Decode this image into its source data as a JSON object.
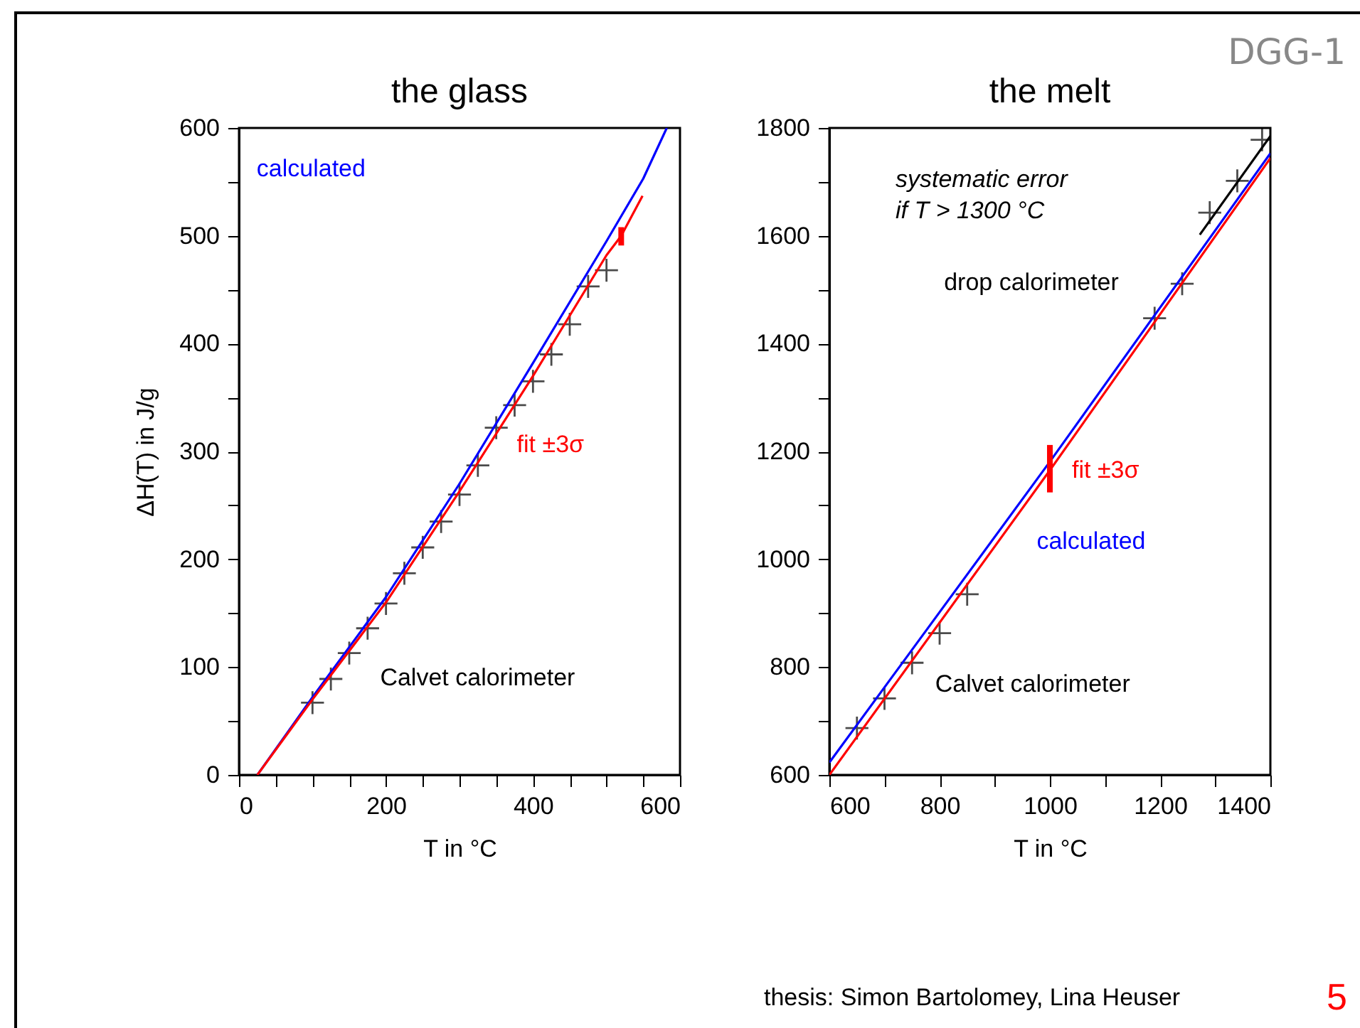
{
  "chart_data": [
    {
      "type": "line",
      "title": "the glass",
      "xlabel": "T in °C",
      "ylabel": "ΔH(T) in J/g",
      "xlim": [
        0,
        600
      ],
      "ylim": [
        0,
        600
      ],
      "xticks": [
        0,
        {
          "value": 50,
          "label": null
        },
        {
          "value": 100,
          "label": null
        },
        {
          "value": 150,
          "label": null
        },
        200,
        {
          "value": 250,
          "label": null
        },
        {
          "value": 300,
          "label": null
        },
        {
          "value": 350,
          "label": null
        },
        400,
        {
          "value": 450,
          "label": null
        },
        {
          "value": 500,
          "label": null
        },
        {
          "value": 550,
          "label": null
        },
        600
      ],
      "yticks": [
        0,
        {
          "value": 50,
          "label": null
        },
        100,
        {
          "value": 150,
          "label": null
        },
        200,
        {
          "value": 250,
          "label": null
        },
        300,
        {
          "value": 350,
          "label": null
        },
        400,
        {
          "value": 450,
          "label": null
        },
        500,
        {
          "value": 550,
          "label": null
        },
        600
      ],
      "series": [
        {
          "type": "scatter",
          "marker": "cross",
          "color": "#000000",
          "x": [
            100,
            125,
            150,
            175,
            200,
            225,
            250,
            275,
            300,
            325,
            350,
            375,
            400,
            425,
            450,
            475,
            500
          ],
          "values": [
            67,
            89,
            113,
            136,
            159,
            187,
            211,
            235,
            260,
            287,
            322,
            343,
            365,
            390,
            418,
            453,
            468
          ]
        },
        {
          "color": "#0000ff",
          "x": [
            25,
            100,
            200,
            300,
            400,
            500,
            550,
            582
          ],
          "values": [
            0,
            72,
            165,
            270,
            382,
            495,
            553,
            600
          ]
        },
        {
          "color": "#ff0000",
          "x": [
            25,
            100,
            200,
            300,
            400,
            500,
            520,
            549
          ],
          "values": [
            0,
            70,
            160,
            263,
            370,
            482,
            500,
            537
          ],
          "errors": [
            null,
            null,
            null,
            null,
            null,
            null,
            [
              491,
              508
            ],
            null
          ]
        }
      ],
      "annotations": [
        "calculated",
        "fit ±3σ",
        "Calvet calorimeter"
      ]
    },
    {
      "type": "line",
      "title": "the melt",
      "xlabel": "T in °C",
      "xlim": [
        600,
        1400
      ],
      "ylim": [
        600,
        1800
      ],
      "xticks": [
        600,
        {
          "value": 700,
          "label": null
        },
        800,
        {
          "value": 900,
          "label": null
        },
        1000,
        {
          "value": 1100,
          "label": null
        },
        1200,
        {
          "value": 1300,
          "label": null
        },
        1400
      ],
      "yticks": [
        600,
        {
          "value": 700,
          "label": null
        },
        800,
        {
          "value": 900,
          "label": null
        },
        1000,
        {
          "value": 1100,
          "label": null
        },
        1200,
        {
          "value": 1300,
          "label": null
        },
        1400,
        {
          "value": 1500,
          "label": null
        },
        1600,
        {
          "value": 1700,
          "label": null
        },
        1800
      ],
      "series": [
        {
          "type": "scatter",
          "marker": "cross",
          "color": "#000000",
          "x": [
            650,
            700,
            750,
            800,
            850,
            1190,
            1240,
            1290,
            1340,
            1385
          ],
          "values": [
            687,
            742,
            808,
            863,
            935,
            1447,
            1511,
            1643,
            1702,
            1778
          ]
        },
        {
          "color": "#000000",
          "x": [
            1272,
            1400
          ],
          "values": [
            1602,
            1785
          ]
        },
        {
          "color": "#0000ff",
          "x": [
            600,
            1000,
            1400
          ],
          "values": [
            623,
            1181,
            1753
          ]
        },
        {
          "color": "#ff0000",
          "x": [
            600,
            1000,
            1400
          ],
          "values": [
            600,
            1165,
            1744
          ],
          "errors": [
            null,
            [
              1124,
              1212
            ],
            null
          ]
        }
      ],
      "annotations": [
        "systematic error\nif T > 1300 °C",
        "drop calorimeter",
        "fit ±3σ",
        "calculated",
        "Calvet calorimeter",
        "DGG-1",
        "thesis: Simon Bartolomey, Lina Heuser",
        "5"
      ]
    }
  ]
}
